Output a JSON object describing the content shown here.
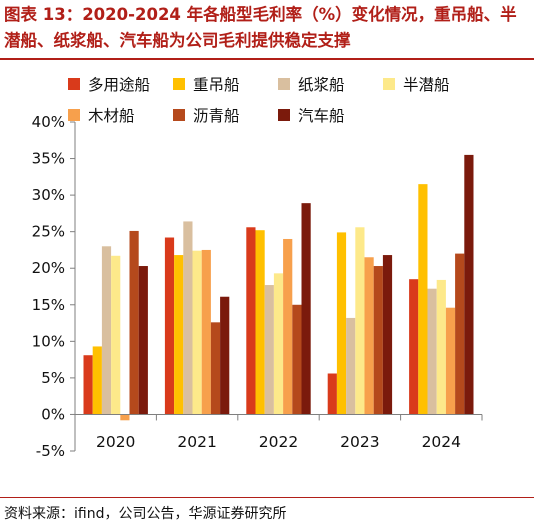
{
  "title": "图表 13：2020-2024 年各船型毛利率（%）变化情况，重吊船、半潜船、纸浆船、汽车船为公司毛利提供稳定支撑",
  "source": "资料来源：ifind，公司公告，华源证券研究所",
  "chart_data": {
    "type": "bar",
    "categories": [
      "2020",
      "2021",
      "2022",
      "2023",
      "2024"
    ],
    "ylim": [
      -5,
      40
    ],
    "yticks": [
      -5,
      0,
      5,
      10,
      15,
      20,
      25,
      30,
      35,
      40
    ],
    "ytick_labels": [
      "-5%",
      "0%",
      "5%",
      "10%",
      "15%",
      "20%",
      "25%",
      "30%",
      "35%",
      "40%"
    ],
    "grid": false,
    "legend": "top",
    "series": [
      {
        "name": "多用途船",
        "color": "#d93a1b",
        "values": [
          8.1,
          24.2,
          25.6,
          5.6,
          18.5
        ]
      },
      {
        "name": "重吊船",
        "color": "#ffc000",
        "values": [
          9.3,
          21.8,
          25.2,
          24.9,
          31.5
        ]
      },
      {
        "name": "纸浆船",
        "color": "#d9bf9f",
        "values": [
          23.0,
          26.4,
          17.7,
          13.2,
          17.2
        ]
      },
      {
        "name": "半潜船",
        "color": "#fde98a",
        "values": [
          21.7,
          22.4,
          19.3,
          25.6,
          18.4
        ]
      },
      {
        "name": "木材船",
        "color": "#f7a04c",
        "values": [
          -0.8,
          22.5,
          24.0,
          21.5,
          14.6
        ]
      },
      {
        "name": "沥青船",
        "color": "#b5491c",
        "values": [
          25.1,
          12.6,
          15.0,
          20.3,
          22.0
        ]
      },
      {
        "name": "汽车船",
        "color": "#7b1a0c",
        "values": [
          20.3,
          16.1,
          28.9,
          21.8,
          35.5
        ]
      }
    ]
  }
}
